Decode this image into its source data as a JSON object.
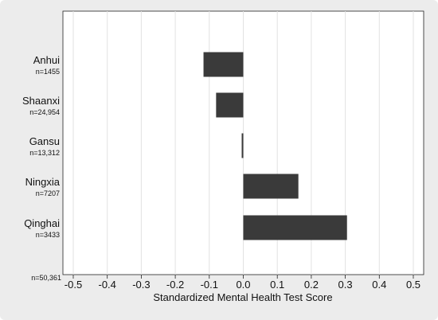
{
  "chart_data": {
    "type": "bar",
    "orientation": "horizontal",
    "categories": [
      "Anhui",
      "Shaanxi",
      "Gansu",
      "Ningxia",
      "Qinghai"
    ],
    "sample_sizes": [
      "n=1455",
      "n=24,954",
      "n=13,312",
      "n=7207",
      "n=3433"
    ],
    "total_n": "n=50,361",
    "values": [
      -0.117,
      -0.08,
      -0.004,
      0.162,
      0.305
    ],
    "xlabel": "Standardized Mental Health Test Score",
    "xlim": [
      -0.5,
      0.5
    ],
    "x_ticks": [
      -0.5,
      -0.4,
      -0.3,
      -0.2,
      -0.1,
      0.0,
      0.1,
      0.2,
      0.3,
      0.4,
      0.5
    ],
    "x_tick_labels": [
      "-0.5",
      "-0.4",
      "-0.3",
      "-0.2",
      "-0.1",
      "0.0",
      "0.1",
      "0.2",
      "0.3",
      "0.4",
      "0.5"
    ],
    "grid": "vertical",
    "bar_color": "#3a3a3a",
    "grid_color": "#e2e2e2",
    "background": "#ececec",
    "plot_background": "#ffffff"
  }
}
